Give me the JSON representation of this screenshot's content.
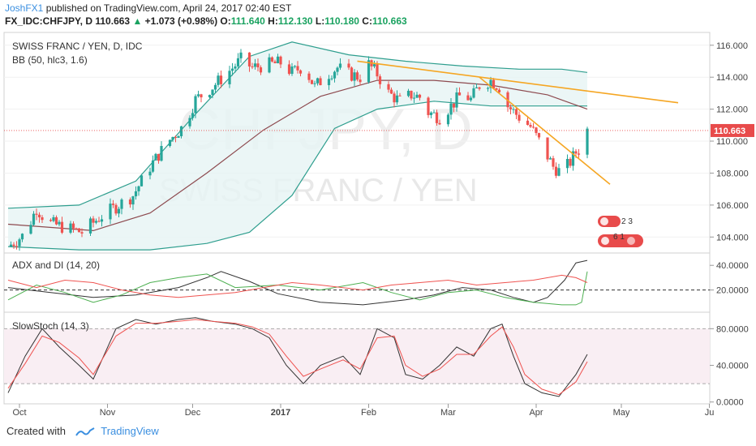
{
  "header": {
    "author": "JoshFX1",
    "published": "published on TradingView.com, April 24, 2017 02:40 EST",
    "symbol": "FX_IDC:CHFJPY, D",
    "last": "110.663",
    "arrow": "▲",
    "change": "+1.073 (+0.98%)",
    "o_label": "O:",
    "o_value": "111.640",
    "h_label": "H:",
    "h_value": "112.130",
    "l_label": "L:",
    "l_value": "110.180",
    "c_label": "C:",
    "c_value": "110.663"
  },
  "watermark": {
    "ticker": "CHFJPY, D",
    "name": "SWISS FRANC / YEN"
  },
  "footer": {
    "created_with": "Created with",
    "brand": "TradingView"
  },
  "colors": {
    "bull": "#26a69a",
    "bear": "#ef5350",
    "ma": "#8d4a4f",
    "band": "#2e9e8e",
    "trend": "#f5a623",
    "price_tag": "#e84b4b"
  },
  "chart_data": [
    {
      "type": "candlestick",
      "title": "SWISS FRANC / YEN, D, IDC",
      "indicator": "BB (50, hlc3, 1.6)",
      "ylim": [
        103,
        116.8
      ],
      "y_ticks": [
        "104.000",
        "106.000",
        "108.000",
        "110.000",
        "112.000",
        "114.000",
        "116.000"
      ],
      "last_price_label": "110.663",
      "x_ticks": [
        {
          "label": "Oct",
          "day": 4
        },
        {
          "label": "Nov",
          "day": 35
        },
        {
          "label": "Dec",
          "day": 65
        },
        {
          "label": "2017",
          "day": 96
        },
        {
          "label": "Feb",
          "day": 127
        },
        {
          "label": "Mar",
          "day": 155
        },
        {
          "label": "Apr",
          "day": 186
        },
        {
          "label": "May",
          "day": 216
        },
        {
          "label": "Ju",
          "day": 247
        }
      ],
      "close_path": [
        [
          0,
          103.4
        ],
        [
          6,
          104.2
        ],
        [
          10,
          105.8
        ],
        [
          14,
          104.9
        ],
        [
          20,
          104.6
        ],
        [
          26,
          104.3
        ],
        [
          32,
          105.2
        ],
        [
          38,
          105.9
        ],
        [
          44,
          106.6
        ],
        [
          50,
          108.4
        ],
        [
          56,
          109.9
        ],
        [
          62,
          111.0
        ],
        [
          66,
          112.6
        ],
        [
          72,
          113.4
        ],
        [
          78,
          114.4
        ],
        [
          82,
          115.1
        ],
        [
          86,
          114.6
        ],
        [
          92,
          114.8
        ],
        [
          96,
          114.9
        ],
        [
          100,
          114.3
        ],
        [
          104,
          114.7
        ],
        [
          108,
          113.4
        ],
        [
          112,
          114.1
        ],
        [
          116,
          114.6
        ],
        [
          120,
          114.2
        ],
        [
          124,
          114.0
        ],
        [
          126,
          115.0
        ],
        [
          130,
          114.2
        ],
        [
          134,
          113.0
        ],
        [
          138,
          112.5
        ],
        [
          142,
          112.9
        ],
        [
          146,
          112.7
        ],
        [
          148,
          111.8
        ],
        [
          152,
          111.5
        ],
        [
          156,
          112.2
        ],
        [
          160,
          113.0
        ],
        [
          163,
          112.6
        ],
        [
          166,
          113.5
        ],
        [
          170,
          113.8
        ],
        [
          173,
          113.4
        ],
        [
          176,
          112.2
        ],
        [
          180,
          111.5
        ],
        [
          184,
          110.9
        ],
        [
          188,
          109.7
        ],
        [
          192,
          108.4
        ],
        [
          195,
          108.0
        ],
        [
          198,
          108.7
        ],
        [
          200,
          109.3
        ],
        [
          202,
          109.6
        ],
        [
          204,
          110.7
        ]
      ],
      "ma_path": [
        [
          0,
          104.8
        ],
        [
          30,
          104.4
        ],
        [
          50,
          105.5
        ],
        [
          70,
          108.0
        ],
        [
          90,
          110.7
        ],
        [
          110,
          112.8
        ],
        [
          130,
          113.8
        ],
        [
          150,
          113.8
        ],
        [
          170,
          113.5
        ],
        [
          190,
          112.9
        ],
        [
          204,
          112.0
        ]
      ],
      "upper_band_path": [
        [
          0,
          105.8
        ],
        [
          25,
          106.0
        ],
        [
          45,
          107.5
        ],
        [
          65,
          111.5
        ],
        [
          85,
          115.3
        ],
        [
          100,
          116.2
        ],
        [
          120,
          115.4
        ],
        [
          140,
          115.0
        ],
        [
          160,
          114.7
        ],
        [
          180,
          114.5
        ],
        [
          195,
          114.5
        ],
        [
          204,
          114.3
        ]
      ],
      "lower_band_path": [
        [
          0,
          103.4
        ],
        [
          25,
          103.2
        ],
        [
          50,
          103.2
        ],
        [
          70,
          103.6
        ],
        [
          85,
          104.3
        ],
        [
          100,
          106.6
        ],
        [
          115,
          110.8
        ],
        [
          130,
          112.0
        ],
        [
          150,
          112.5
        ],
        [
          170,
          112.2
        ],
        [
          190,
          112.2
        ],
        [
          204,
          112.2
        ]
      ],
      "trendlines": [
        {
          "from": [
            123,
            115.0
          ],
          "to": [
            236,
            112.4
          ]
        },
        {
          "from": [
            166,
            114.0
          ],
          "to": [
            212,
            107.3
          ]
        }
      ],
      "event_badges": [
        "2 3",
        "6 1"
      ]
    },
    {
      "type": "line",
      "title": "ADX and DI (14, 20)",
      "ylim": [
        2,
        50
      ],
      "y_ticks": [
        "20.0000",
        "40.0000"
      ],
      "reference_line": 20,
      "series": [
        {
          "color": "#333333",
          "points": [
            [
              0,
              22
            ],
            [
              15,
              18
            ],
            [
              30,
              14
            ],
            [
              45,
              16
            ],
            [
              60,
              22
            ],
            [
              70,
              30
            ],
            [
              75,
              35
            ],
            [
              85,
              27
            ],
            [
              95,
              17
            ],
            [
              110,
              10
            ],
            [
              125,
              8
            ],
            [
              140,
              12
            ],
            [
              150,
              16
            ],
            [
              160,
              22
            ],
            [
              170,
              20
            ],
            [
              178,
              14
            ],
            [
              185,
              10
            ],
            [
              190,
              14
            ],
            [
              196,
              28
            ],
            [
              200,
              42
            ],
            [
              204,
              44
            ]
          ]
        },
        {
          "color": "#4caf50",
          "points": [
            [
              0,
              12
            ],
            [
              10,
              24
            ],
            [
              20,
              18
            ],
            [
              30,
              10
            ],
            [
              40,
              16
            ],
            [
              50,
              26
            ],
            [
              60,
              30
            ],
            [
              70,
              33
            ],
            [
              80,
              22
            ],
            [
              95,
              24
            ],
            [
              110,
              20
            ],
            [
              125,
              26
            ],
            [
              135,
              18
            ],
            [
              145,
              12
            ],
            [
              155,
              18
            ],
            [
              165,
              20
            ],
            [
              175,
              14
            ],
            [
              185,
              10
            ],
            [
              195,
              8
            ],
            [
              200,
              8
            ],
            [
              202,
              10
            ],
            [
              204,
              35
            ]
          ]
        },
        {
          "color": "#ef5350",
          "points": [
            [
              0,
              28
            ],
            [
              10,
              22
            ],
            [
              20,
              28
            ],
            [
              30,
              26
            ],
            [
              40,
              20
            ],
            [
              50,
              16
            ],
            [
              60,
              14
            ],
            [
              70,
              16
            ],
            [
              80,
              18
            ],
            [
              90,
              22
            ],
            [
              100,
              26
            ],
            [
              110,
              24
            ],
            [
              125,
              20
            ],
            [
              135,
              24
            ],
            [
              145,
              26
            ],
            [
              155,
              28
            ],
            [
              165,
              24
            ],
            [
              175,
              26
            ],
            [
              185,
              28
            ],
            [
              195,
              32
            ],
            [
              200,
              30
            ],
            [
              204,
              26
            ]
          ]
        }
      ]
    },
    {
      "type": "line",
      "title": "SlowStoch (14, 3)",
      "ylim": [
        -2,
        98
      ],
      "y_ticks": [
        "0.0000",
        "40.0000",
        "80.0000"
      ],
      "bounds": [
        20,
        80
      ],
      "series": [
        {
          "color": "#333333",
          "points": [
            [
              0,
              10
            ],
            [
              6,
              50
            ],
            [
              12,
              80
            ],
            [
              18,
              60
            ],
            [
              25,
              40
            ],
            [
              30,
              25
            ],
            [
              38,
              80
            ],
            [
              45,
              90
            ],
            [
              52,
              85
            ],
            [
              60,
              90
            ],
            [
              66,
              92
            ],
            [
              72,
              88
            ],
            [
              80,
              85
            ],
            [
              86,
              80
            ],
            [
              92,
              70
            ],
            [
              98,
              40
            ],
            [
              104,
              20
            ],
            [
              110,
              40
            ],
            [
              118,
              50
            ],
            [
              124,
              30
            ],
            [
              130,
              80
            ],
            [
              136,
              70
            ],
            [
              140,
              30
            ],
            [
              146,
              25
            ],
            [
              152,
              40
            ],
            [
              158,
              60
            ],
            [
              164,
              50
            ],
            [
              170,
              80
            ],
            [
              174,
              85
            ],
            [
              178,
              50
            ],
            [
              182,
              20
            ],
            [
              188,
              10
            ],
            [
              194,
              6
            ],
            [
              200,
              30
            ],
            [
              204,
              52
            ]
          ]
        },
        {
          "color": "#ef5350",
          "points": [
            [
              0,
              15
            ],
            [
              6,
              42
            ],
            [
              12,
              72
            ],
            [
              18,
              65
            ],
            [
              25,
              48
            ],
            [
              30,
              30
            ],
            [
              38,
              72
            ],
            [
              45,
              86
            ],
            [
              52,
              86
            ],
            [
              60,
              88
            ],
            [
              66,
              90
            ],
            [
              72,
              88
            ],
            [
              80,
              86
            ],
            [
              86,
              82
            ],
            [
              92,
              74
            ],
            [
              98,
              50
            ],
            [
              104,
              28
            ],
            [
              110,
              36
            ],
            [
              118,
              46
            ],
            [
              124,
              36
            ],
            [
              130,
              70
            ],
            [
              136,
              72
            ],
            [
              140,
              40
            ],
            [
              146,
              28
            ],
            [
              152,
              36
            ],
            [
              158,
              52
            ],
            [
              164,
              52
            ],
            [
              170,
              72
            ],
            [
              174,
              82
            ],
            [
              178,
              60
            ],
            [
              182,
              30
            ],
            [
              188,
              14
            ],
            [
              194,
              8
            ],
            [
              200,
              22
            ],
            [
              204,
              44
            ]
          ]
        }
      ]
    }
  ]
}
